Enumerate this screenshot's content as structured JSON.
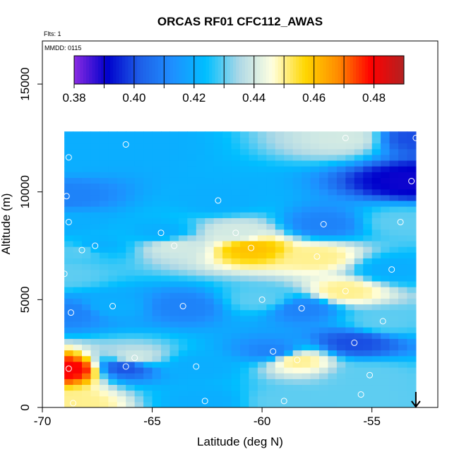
{
  "chart_data": {
    "type": "heatmap",
    "title": "ORCAS RF01 CFC112_AWAS",
    "flights_label": "Flts: 1",
    "date_label": "MMDD: 0115",
    "xlabel": "Latitude (deg N)",
    "ylabel": "Altitude (m)",
    "xlim": [
      -70,
      -52
    ],
    "ylim": [
      0,
      17000
    ],
    "x_ticks": [
      -70,
      -65,
      -60,
      -55
    ],
    "x_tick_labels": [
      "-70",
      "-65",
      "-60",
      "-55"
    ],
    "y_ticks": [
      0,
      5000,
      10000,
      15000
    ],
    "y_tick_labels": [
      "0",
      "5000",
      "10000",
      "15000"
    ],
    "colorbar": {
      "range": [
        0.38,
        0.49
      ],
      "ticks": [
        0.38,
        0.4,
        0.42,
        0.44,
        0.46,
        0.48
      ],
      "tick_labels": [
        "0.38",
        "0.40",
        "0.42",
        "0.44",
        "0.46",
        "0.48"
      ],
      "colors": [
        "#8a2be2",
        "#0000cc",
        "#1e5fe8",
        "#1e90ff",
        "#00bfff",
        "#add8e6",
        "#ffffe0",
        "#ffd700",
        "#ff8c00",
        "#ff0000",
        "#b22222"
      ]
    },
    "field": {
      "x_start": -69,
      "x_end": -53,
      "y_start": 0,
      "y_end": 12800,
      "nx": 40,
      "ny": 48
    },
    "samples": [
      {
        "lat": -68.8,
        "alt": 11600,
        "value": 0.42
      },
      {
        "lat": -68.9,
        "alt": 9800,
        "value": 0.41
      },
      {
        "lat": -68.8,
        "alt": 8600,
        "value": 0.42
      },
      {
        "lat": -68.2,
        "alt": 7300,
        "value": 0.43
      },
      {
        "lat": -69.0,
        "alt": 6200,
        "value": 0.43
      },
      {
        "lat": -68.7,
        "alt": 4400,
        "value": 0.41
      },
      {
        "lat": -68.8,
        "alt": 1800,
        "value": 0.48
      },
      {
        "lat": -68.6,
        "alt": 200,
        "value": 0.45
      },
      {
        "lat": -67.6,
        "alt": 7500,
        "value": 0.42
      },
      {
        "lat": -66.8,
        "alt": 4700,
        "value": 0.42
      },
      {
        "lat": -66.2,
        "alt": 1900,
        "value": 0.4
      },
      {
        "lat": -66.2,
        "alt": 12200,
        "value": 0.42
      },
      {
        "lat": -65.8,
        "alt": 2300,
        "value": 0.44
      },
      {
        "lat": -64.6,
        "alt": 8100,
        "value": 0.42
      },
      {
        "lat": -64.0,
        "alt": 7500,
        "value": 0.44
      },
      {
        "lat": -63.6,
        "alt": 4700,
        "value": 0.41
      },
      {
        "lat": -63.0,
        "alt": 1900,
        "value": 0.42
      },
      {
        "lat": -62.6,
        "alt": 300,
        "value": 0.42
      },
      {
        "lat": -62.0,
        "alt": 9600,
        "value": 0.42
      },
      {
        "lat": -61.2,
        "alt": 8100,
        "value": 0.44
      },
      {
        "lat": -60.5,
        "alt": 7400,
        "value": 0.46
      },
      {
        "lat": -60.0,
        "alt": 5000,
        "value": 0.43
      },
      {
        "lat": -59.5,
        "alt": 2600,
        "value": 0.41
      },
      {
        "lat": -59.0,
        "alt": 300,
        "value": 0.43
      },
      {
        "lat": -58.4,
        "alt": 2200,
        "value": 0.45
      },
      {
        "lat": -58.2,
        "alt": 4600,
        "value": 0.41
      },
      {
        "lat": -57.5,
        "alt": 7000,
        "value": 0.45
      },
      {
        "lat": -57.2,
        "alt": 8500,
        "value": 0.41
      },
      {
        "lat": -56.2,
        "alt": 5400,
        "value": 0.45
      },
      {
        "lat": -56.2,
        "alt": 12500,
        "value": 0.44
      },
      {
        "lat": -55.8,
        "alt": 3000,
        "value": 0.4
      },
      {
        "lat": -55.5,
        "alt": 600,
        "value": 0.43
      },
      {
        "lat": -55.1,
        "alt": 1500,
        "value": 0.43
      },
      {
        "lat": -54.5,
        "alt": 4000,
        "value": 0.43
      },
      {
        "lat": -54.1,
        "alt": 6400,
        "value": 0.42
      },
      {
        "lat": -53.7,
        "alt": 8600,
        "value": 0.43
      },
      {
        "lat": -53.2,
        "alt": 10500,
        "value": 0.39
      },
      {
        "lat": -53.0,
        "alt": 12500,
        "value": 0.4
      }
    ],
    "arrow_marker": {
      "lat": -53.0,
      "direction": "down"
    }
  }
}
